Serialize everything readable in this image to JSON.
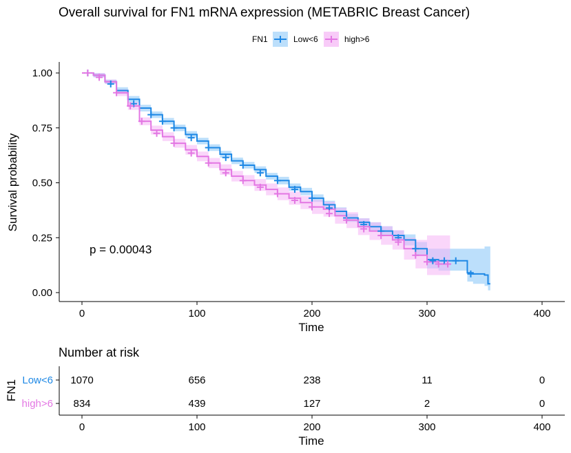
{
  "chart_data": {
    "type": "line",
    "title": "Overall survival for FN1 mRNA expression (METABRIC Breast Cancer)",
    "xlabel": "Time",
    "ylabel": "Survival probability",
    "xlim": [
      0,
      400
    ],
    "ylim": [
      0,
      1
    ],
    "x_ticks": [
      0,
      100,
      200,
      300,
      400
    ],
    "y_ticks": [
      0.0,
      0.25,
      0.5,
      0.75,
      1.0
    ],
    "y_tick_labels": [
      "0.00",
      "0.25",
      "0.50",
      "0.75",
      "1.00"
    ],
    "grid": false,
    "legend": {
      "title": "FN1",
      "placement": "top",
      "entries": [
        "Low<6",
        "high>6"
      ]
    },
    "annotation": "p = 0.00043",
    "series": [
      {
        "name": "Low<6",
        "color": "#1E88E5",
        "band_color": "#90CAF9",
        "x": [
          0,
          10,
          20,
          30,
          40,
          50,
          60,
          70,
          80,
          90,
          100,
          110,
          120,
          130,
          140,
          150,
          160,
          170,
          180,
          190,
          200,
          210,
          220,
          230,
          240,
          250,
          260,
          270,
          280,
          290,
          300,
          310,
          320,
          330,
          335,
          340,
          350,
          353,
          355
        ],
        "y": [
          1.0,
          0.99,
          0.96,
          0.92,
          0.88,
          0.84,
          0.81,
          0.78,
          0.75,
          0.72,
          0.69,
          0.66,
          0.63,
          0.6,
          0.58,
          0.56,
          0.53,
          0.51,
          0.48,
          0.46,
          0.43,
          0.4,
          0.37,
          0.34,
          0.32,
          0.3,
          0.28,
          0.26,
          0.24,
          0.2,
          0.15,
          0.145,
          0.145,
          0.145,
          0.09,
          0.085,
          0.08,
          0.04,
          0.04
        ],
        "lower": [
          1.0,
          0.98,
          0.95,
          0.905,
          0.865,
          0.825,
          0.795,
          0.765,
          0.735,
          0.705,
          0.675,
          0.645,
          0.615,
          0.585,
          0.565,
          0.545,
          0.515,
          0.493,
          0.463,
          0.443,
          0.413,
          0.382,
          0.352,
          0.322,
          0.302,
          0.28,
          0.258,
          0.237,
          0.215,
          0.17,
          0.11,
          0.1,
          0.1,
          0.1,
          0.05,
          0.04,
          0.03,
          0.01,
          0.01
        ],
        "upper": [
          1.0,
          1.0,
          0.97,
          0.935,
          0.895,
          0.855,
          0.825,
          0.795,
          0.765,
          0.735,
          0.705,
          0.675,
          0.645,
          0.615,
          0.595,
          0.575,
          0.545,
          0.527,
          0.497,
          0.477,
          0.447,
          0.418,
          0.388,
          0.358,
          0.338,
          0.32,
          0.302,
          0.283,
          0.265,
          0.23,
          0.2,
          0.2,
          0.2,
          0.2,
          0.2,
          0.2,
          0.21,
          0.21,
          0.21
        ],
        "censor_x": [
          5,
          25,
          45,
          60,
          70,
          80,
          95,
          110,
          125,
          140,
          155,
          170,
          185,
          200,
          215,
          230,
          245,
          260,
          275,
          290,
          305,
          315,
          325,
          338
        ],
        "censor_y": [
          1.0,
          0.95,
          0.86,
          0.81,
          0.78,
          0.75,
          0.705,
          0.66,
          0.615,
          0.58,
          0.545,
          0.51,
          0.47,
          0.43,
          0.385,
          0.34,
          0.31,
          0.28,
          0.25,
          0.2,
          0.145,
          0.145,
          0.145,
          0.085
        ]
      },
      {
        "name": "high>6",
        "color": "#E377E3",
        "band_color": "#F5B5F5",
        "x": [
          0,
          10,
          20,
          30,
          40,
          50,
          60,
          70,
          80,
          90,
          100,
          110,
          120,
          130,
          140,
          150,
          160,
          170,
          180,
          190,
          200,
          210,
          220,
          230,
          240,
          250,
          260,
          270,
          280,
          290,
          300,
          310,
          320
        ],
        "y": [
          1.0,
          0.99,
          0.96,
          0.91,
          0.85,
          0.78,
          0.74,
          0.71,
          0.68,
          0.65,
          0.62,
          0.59,
          0.56,
          0.53,
          0.51,
          0.49,
          0.47,
          0.45,
          0.43,
          0.41,
          0.39,
          0.38,
          0.35,
          0.33,
          0.3,
          0.28,
          0.26,
          0.24,
          0.2,
          0.17,
          0.14,
          0.13,
          0.13
        ],
        "lower": [
          1.0,
          0.98,
          0.95,
          0.895,
          0.832,
          0.762,
          0.72,
          0.69,
          0.66,
          0.628,
          0.598,
          0.567,
          0.536,
          0.506,
          0.485,
          0.463,
          0.443,
          0.421,
          0.4,
          0.38,
          0.358,
          0.346,
          0.314,
          0.294,
          0.262,
          0.24,
          0.218,
          0.196,
          0.15,
          0.11,
          0.08,
          0.08,
          0.08
        ],
        "upper": [
          1.0,
          1.0,
          0.97,
          0.925,
          0.868,
          0.798,
          0.76,
          0.73,
          0.7,
          0.672,
          0.642,
          0.613,
          0.584,
          0.554,
          0.535,
          0.517,
          0.497,
          0.479,
          0.46,
          0.44,
          0.422,
          0.414,
          0.386,
          0.366,
          0.338,
          0.32,
          0.302,
          0.284,
          0.25,
          0.24,
          0.26,
          0.26,
          0.26
        ],
        "censor_x": [
          5,
          15,
          30,
          42,
          52,
          65,
          80,
          95,
          110,
          125,
          140,
          155,
          170,
          185,
          200,
          215,
          230,
          245,
          260,
          275,
          290,
          300,
          310,
          318
        ],
        "censor_y": [
          1.0,
          0.98,
          0.91,
          0.85,
          0.78,
          0.725,
          0.68,
          0.635,
          0.59,
          0.545,
          0.51,
          0.48,
          0.45,
          0.42,
          0.39,
          0.36,
          0.33,
          0.29,
          0.26,
          0.23,
          0.17,
          0.14,
          0.13,
          0.13
        ]
      }
    ],
    "risk_table": {
      "title": "Number at risk",
      "ylabel": "FN1",
      "xlabel": "Time",
      "x_ticks": [
        0,
        100,
        200,
        300,
        400
      ],
      "rows": [
        {
          "label": "Low<6",
          "color": "#1E88E5",
          "values": [
            1070,
            656,
            238,
            11,
            0
          ]
        },
        {
          "label": "high>6",
          "color": "#E377E3",
          "values": [
            834,
            439,
            127,
            2,
            0
          ]
        }
      ]
    }
  }
}
